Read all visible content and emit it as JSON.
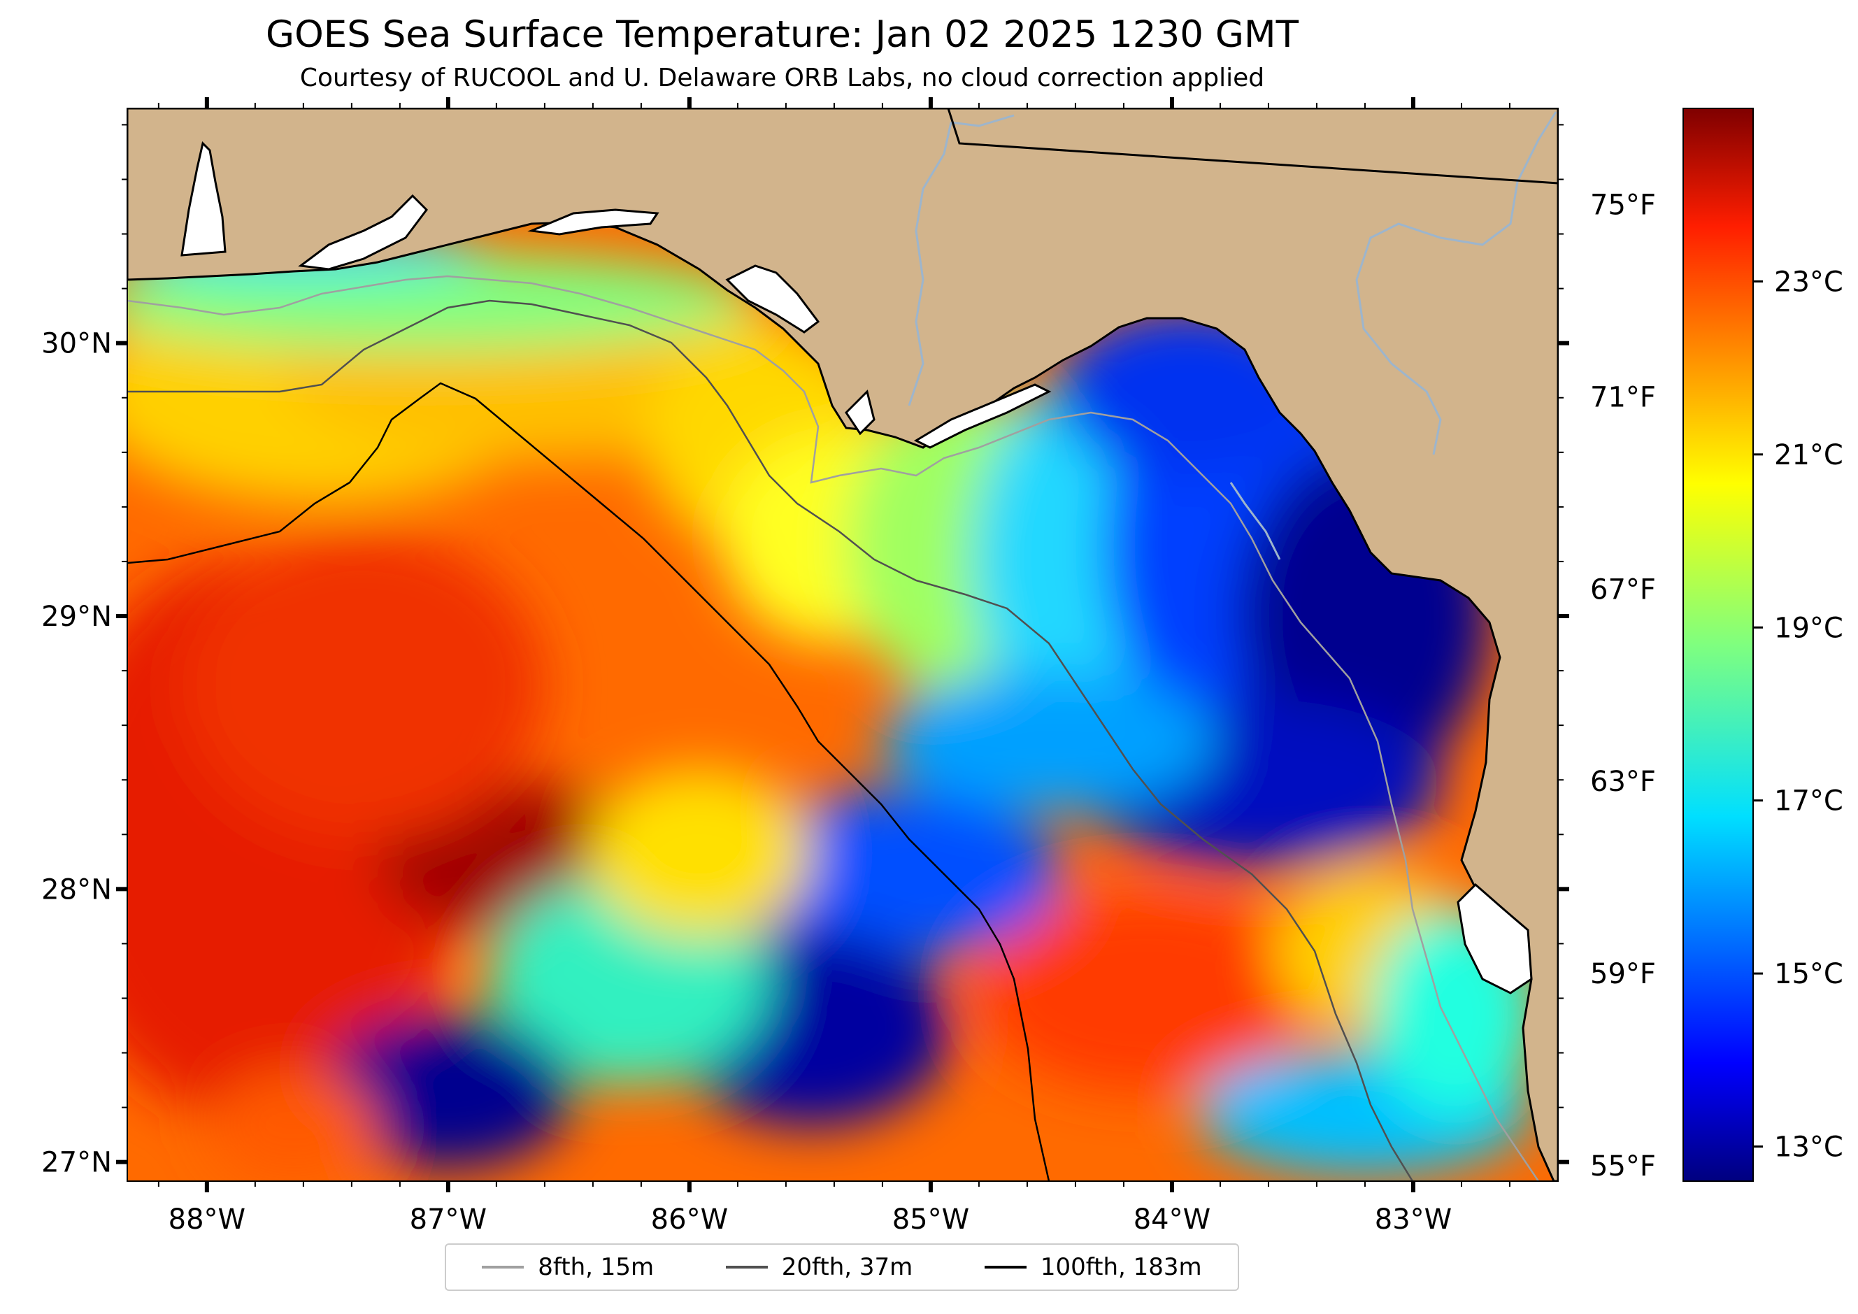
{
  "title": "GOES Sea Surface Temperature: Jan 02 2025 1230 GMT",
  "subtitle": "Courtesy of RUCOOL and U. Delaware ORB Labs, no cloud correction applied",
  "axes": {
    "lon_ticks": [
      {
        "value": -88,
        "label": "88°W"
      },
      {
        "value": -87,
        "label": "87°W"
      },
      {
        "value": -86,
        "label": "86°W"
      },
      {
        "value": -85,
        "label": "85°W"
      },
      {
        "value": -84,
        "label": "84°W"
      },
      {
        "value": -83,
        "label": "83°W"
      }
    ],
    "lat_ticks": [
      {
        "value": 27,
        "label": "27°N"
      },
      {
        "value": 28,
        "label": "28°N"
      },
      {
        "value": 29,
        "label": "29°N"
      },
      {
        "value": 30,
        "label": "30°N"
      }
    ],
    "lon_range": [
      -88.33,
      -82.4
    ],
    "lat_range": [
      26.93,
      30.86
    ],
    "fahrenheit_ticks": [
      {
        "value": 75,
        "label": "75°F"
      },
      {
        "value": 71,
        "label": "71°F"
      },
      {
        "value": 67,
        "label": "67°F"
      },
      {
        "value": 63,
        "label": "63°F"
      },
      {
        "value": 59,
        "label": "59°F"
      },
      {
        "value": 55,
        "label": "55°F"
      }
    ]
  },
  "colorbar": {
    "range_c": [
      12.6,
      25.0
    ],
    "ticks": [
      {
        "value": 23,
        "label": "23°C"
      },
      {
        "value": 21,
        "label": "21°C"
      },
      {
        "value": 19,
        "label": "19°C"
      },
      {
        "value": 17,
        "label": "17°C"
      },
      {
        "value": 15,
        "label": "15°C"
      },
      {
        "value": 13,
        "label": "13°C"
      }
    ],
    "colormap": "jet"
  },
  "legend": [
    {
      "label": "8fth, 15m",
      "color": "#a0a0a0"
    },
    {
      "label": "20fth, 37m",
      "color": "#505050"
    },
    {
      "label": "100fth, 183m",
      "color": "#000000"
    }
  ],
  "colors": {
    "land": "#d2b48c",
    "no_data": "#ffffff",
    "coastline": "#000000",
    "rivers": "#9db5cc"
  }
}
